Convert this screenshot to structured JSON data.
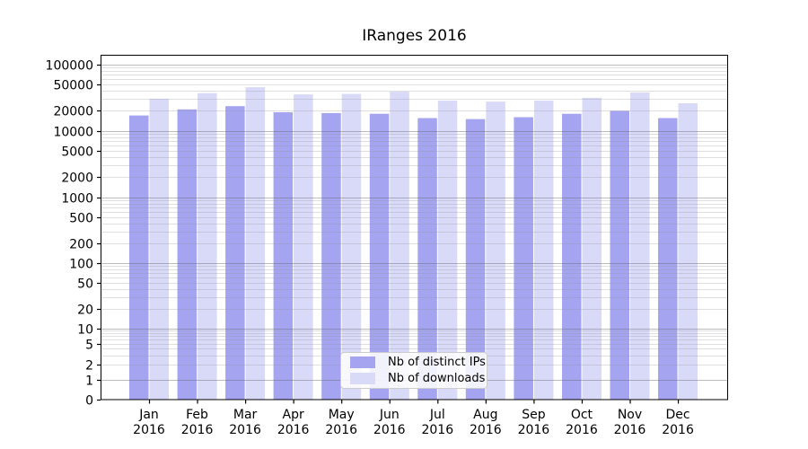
{
  "chart_data": {
    "type": "bar",
    "title": "IRanges 2016",
    "categories": [
      "Jan 2016",
      "Feb 2016",
      "Mar 2016",
      "Apr 2016",
      "May 2016",
      "Jun 2016",
      "Jul 2016",
      "Aug 2016",
      "Sep 2016",
      "Oct 2016",
      "Nov 2016",
      "Dec 2016"
    ],
    "series": [
      {
        "name": "Nb of distinct IPs",
        "color": "#a4a4f0",
        "values": [
          17000,
          21000,
          23500,
          19000,
          18500,
          18000,
          15500,
          15000,
          16000,
          18000,
          20000,
          15500
        ]
      },
      {
        "name": "Nb of downloads",
        "color": "#d9d9f8",
        "values": [
          30500,
          37000,
          45500,
          35500,
          36000,
          39000,
          28500,
          27500,
          28500,
          31500,
          38000,
          26000
        ]
      }
    ],
    "xlabel": "",
    "ylabel": "",
    "yscale": "symlog",
    "y_ticks": [
      0,
      1,
      2,
      5,
      10,
      20,
      50,
      100,
      200,
      500,
      1000,
      2000,
      5000,
      10000,
      20000,
      50000,
      100000
    ],
    "ylim": [
      0,
      137000
    ],
    "grid": "horizontal, log minor + major decades",
    "legend_position": "lower center"
  },
  "colors": {
    "bar_distinct_ips": "#a4a4f0",
    "bar_downloads": "#d9d9f8",
    "axis": "#000000",
    "grid_major": "#c6c6c6",
    "grid_minor": "#e2e2e5",
    "background": "#ffffff"
  }
}
